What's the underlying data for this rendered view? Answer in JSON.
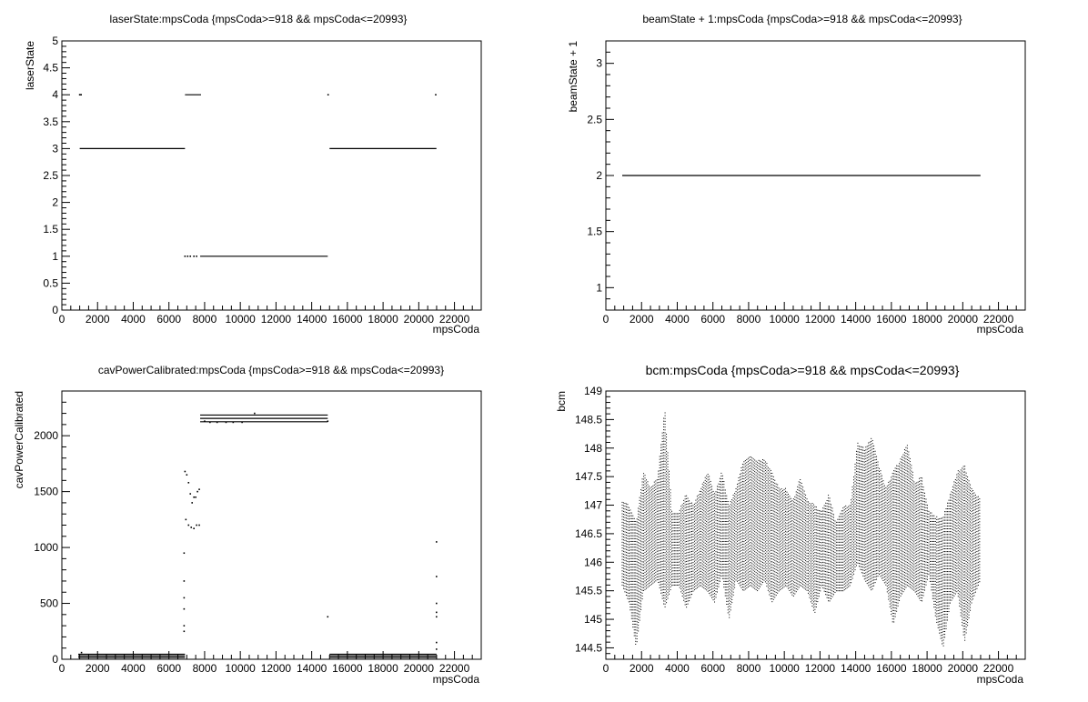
{
  "chart_data": [
    {
      "type": "scatter",
      "title": "laserState:mpsCoda {mpsCoda>=918 && mpsCoda<=20993}",
      "xlabel": "mpsCoda",
      "ylabel": "laserState",
      "xlim": [
        0,
        23500
      ],
      "ylim": [
        0,
        5
      ],
      "xticks": [
        0,
        2000,
        4000,
        6000,
        8000,
        10000,
        12000,
        14000,
        16000,
        18000,
        20000,
        22000
      ],
      "yticks": [
        0,
        0.5,
        1,
        1.5,
        2,
        2.5,
        3,
        3.5,
        4,
        4.5,
        5
      ],
      "segments": [
        {
          "x": [
            1000,
            6900
          ],
          "y": 3
        },
        {
          "x": [
            6900,
            7800
          ],
          "y": 4
        },
        {
          "x": [
            7750,
            14900
          ],
          "y": 1
        },
        {
          "x": [
            15000,
            20990
          ],
          "y": 3
        }
      ],
      "points": [
        {
          "x": 1000,
          "y": 4
        },
        {
          "x": 1080,
          "y": 4
        },
        {
          "x": 6900,
          "y": 1
        },
        {
          "x": 7050,
          "y": 1
        },
        {
          "x": 7200,
          "y": 1
        },
        {
          "x": 7400,
          "y": 1
        },
        {
          "x": 7550,
          "y": 1
        },
        {
          "x": 14920,
          "y": 4
        },
        {
          "x": 20950,
          "y": 4
        }
      ]
    },
    {
      "type": "scatter",
      "title": "beamState + 1:mpsCoda {mpsCoda>=918 && mpsCoda<=20993}",
      "xlabel": "mpsCoda",
      "ylabel": "beamState + 1",
      "xlim": [
        0,
        23500
      ],
      "ylim": [
        0.8,
        3.2
      ],
      "xticks": [
        0,
        2000,
        4000,
        6000,
        8000,
        10000,
        12000,
        14000,
        16000,
        18000,
        20000,
        22000
      ],
      "yticks": [
        1,
        1.5,
        2,
        2.5,
        3
      ],
      "segments": [
        {
          "x": [
            918,
            20993
          ],
          "y": 2
        }
      ],
      "points": []
    },
    {
      "type": "scatter",
      "title": "cavPowerCalibrated:mpsCoda {mpsCoda>=918 && mpsCoda<=20993}",
      "xlabel": "mpsCoda",
      "ylabel": "cavPowerCalibrated",
      "xlim": [
        0,
        23500
      ],
      "ylim": [
        0,
        2400
      ],
      "xticks": [
        0,
        2000,
        4000,
        6000,
        8000,
        10000,
        12000,
        14000,
        16000,
        18000,
        20000,
        22000
      ],
      "yticks": [
        0,
        500,
        1000,
        1500,
        2000
      ],
      "segments": [
        {
          "x": [
            918,
            6900
          ],
          "y": 15
        },
        {
          "x": [
            918,
            6900
          ],
          "y": 30
        },
        {
          "x": [
            918,
            6900
          ],
          "y": 45
        },
        {
          "x": [
            7750,
            14900
          ],
          "y": 2125
        },
        {
          "x": [
            7750,
            14900
          ],
          "y": 2155
        },
        {
          "x": [
            7750,
            14900
          ],
          "y": 2185
        },
        {
          "x": [
            15000,
            20993
          ],
          "y": 15
        },
        {
          "x": [
            15000,
            20993
          ],
          "y": 30
        },
        {
          "x": [
            15000,
            20993
          ],
          "y": 45
        }
      ],
      "points": [
        {
          "x": 6850,
          "y": 250
        },
        {
          "x": 6850,
          "y": 300
        },
        {
          "x": 6850,
          "y": 450
        },
        {
          "x": 6850,
          "y": 550
        },
        {
          "x": 6850,
          "y": 700
        },
        {
          "x": 6850,
          "y": 950
        },
        {
          "x": 6900,
          "y": 1680
        },
        {
          "x": 7000,
          "y": 1650
        },
        {
          "x": 7100,
          "y": 1580
        },
        {
          "x": 7200,
          "y": 1480
        },
        {
          "x": 7300,
          "y": 1400
        },
        {
          "x": 7400,
          "y": 1450
        },
        {
          "x": 7500,
          "y": 1450
        },
        {
          "x": 7600,
          "y": 1500
        },
        {
          "x": 7700,
          "y": 1520
        },
        {
          "x": 6950,
          "y": 1250
        },
        {
          "x": 7100,
          "y": 1200
        },
        {
          "x": 7250,
          "y": 1180
        },
        {
          "x": 7400,
          "y": 1170
        },
        {
          "x": 7550,
          "y": 1200
        },
        {
          "x": 7700,
          "y": 1200
        },
        {
          "x": 8000,
          "y": 2130
        },
        {
          "x": 8300,
          "y": 2120
        },
        {
          "x": 8700,
          "y": 2120
        },
        {
          "x": 9200,
          "y": 2120
        },
        {
          "x": 9600,
          "y": 2120
        },
        {
          "x": 10100,
          "y": 2120
        },
        {
          "x": 10800,
          "y": 2200
        },
        {
          "x": 14900,
          "y": 2130
        },
        {
          "x": 14900,
          "y": 380
        },
        {
          "x": 20993,
          "y": 1050
        },
        {
          "x": 20993,
          "y": 740
        },
        {
          "x": 20993,
          "y": 500
        },
        {
          "x": 20993,
          "y": 420
        },
        {
          "x": 20993,
          "y": 380
        },
        {
          "x": 20993,
          "y": 150
        },
        {
          "x": 20993,
          "y": 90
        },
        {
          "x": 1100,
          "y": 60
        }
      ]
    },
    {
      "type": "scatter",
      "title": "bcm:mpsCoda {mpsCoda>=918 && mpsCoda<=20993}",
      "xlabel": "mpsCoda",
      "ylabel": "bcm",
      "xlim": [
        0,
        23500
      ],
      "ylim": [
        144.3,
        149
      ],
      "xticks": [
        0,
        2000,
        4000,
        6000,
        8000,
        10000,
        12000,
        14000,
        16000,
        18000,
        20000,
        22000
      ],
      "yticks": [
        144.5,
        145,
        145.5,
        146,
        146.5,
        147,
        147.5,
        148,
        148.5,
        149
      ],
      "profile_x": [
        918,
        1300,
        1700,
        2100,
        2500,
        2900,
        3300,
        3700,
        4100,
        4500,
        4900,
        5300,
        5700,
        6100,
        6500,
        6900,
        7300,
        7700,
        8100,
        8500,
        8900,
        9300,
        9700,
        10100,
        10500,
        10900,
        11300,
        11700,
        12100,
        12500,
        12900,
        13300,
        13700,
        14100,
        14500,
        14900,
        15300,
        15700,
        16100,
        16500,
        16900,
        17300,
        17700,
        18100,
        18500,
        18900,
        19300,
        19700,
        20100,
        20500,
        20993
      ],
      "profile_lo": [
        145.6,
        145.3,
        144.5,
        145.5,
        145.6,
        145.7,
        145.2,
        145.6,
        145.6,
        145.2,
        145.5,
        145.6,
        145.5,
        145.3,
        145.8,
        145.0,
        145.7,
        145.5,
        145.6,
        145.5,
        145.7,
        145.3,
        145.5,
        145.6,
        145.4,
        145.6,
        145.5,
        145.1,
        145.6,
        145.3,
        145.5,
        145.5,
        145.6,
        146.0,
        145.7,
        145.5,
        145.8,
        145.6,
        144.9,
        145.4,
        145.6,
        145.5,
        145.3,
        145.8,
        145.0,
        144.5,
        145.3,
        145.5,
        144.6,
        145.3,
        145.7
      ],
      "profile_hi": [
        147.1,
        147.0,
        146.7,
        147.6,
        147.3,
        147.5,
        148.7,
        146.9,
        146.9,
        147.2,
        147.0,
        147.3,
        147.6,
        147.2,
        147.6,
        147.0,
        147.3,
        147.8,
        147.9,
        147.8,
        147.8,
        147.6,
        147.3,
        147.3,
        147.1,
        147.5,
        147.1,
        147.0,
        146.9,
        147.2,
        146.7,
        147.0,
        147.0,
        148.1,
        148.0,
        148.2,
        147.7,
        147.3,
        147.6,
        147.8,
        148.1,
        147.4,
        147.5,
        146.9,
        146.8,
        146.8,
        147.2,
        147.6,
        147.7,
        147.3,
        147.1
      ]
    }
  ]
}
